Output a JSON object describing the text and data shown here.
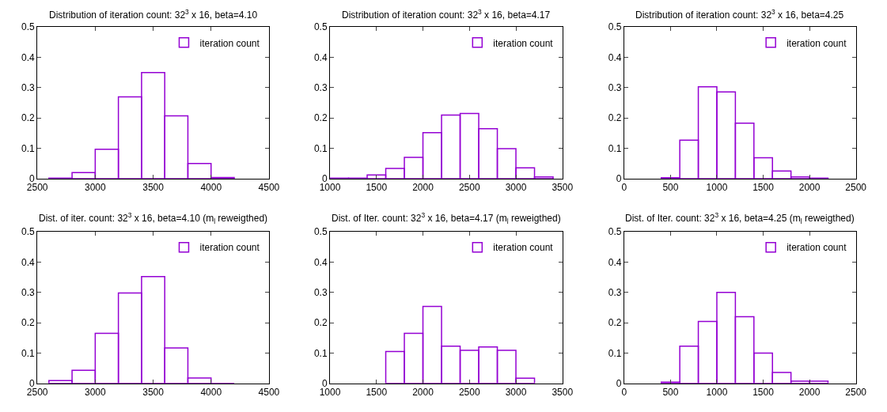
{
  "chart_data": [
    {
      "type": "histogram",
      "title": "Distribution of iteration count: 32$^{3}$ x 16, beta=4.10",
      "bins": [
        2600,
        2800,
        3000,
        3200,
        3400,
        3600,
        3800,
        4000,
        4200
      ],
      "series": [
        {
          "name": "iteration count",
          "color": "#9400d3",
          "values": [
            0.002,
            0.02,
            0.097,
            0.27,
            0.35,
            0.207,
            0.05,
            0.004
          ]
        }
      ],
      "xlim": [
        2500,
        4500
      ],
      "xticks": [
        2500,
        3000,
        3500,
        4000,
        4500
      ],
      "ylim": [
        0,
        0.5
      ],
      "yticks": [
        0,
        0.1,
        0.2,
        0.3,
        0.4,
        0.5
      ],
      "legend": "top right"
    },
    {
      "type": "histogram",
      "title": "Distribution of iteration count: 32$^{3}$ x 16, beta=4.17",
      "bins": [
        1000,
        1200,
        1400,
        1600,
        1800,
        2000,
        2200,
        2400,
        2600,
        2800,
        3000,
        3200,
        3400
      ],
      "series": [
        {
          "name": "iteration count",
          "color": "#9400d3",
          "values": [
            0.002,
            0.002,
            0.012,
            0.034,
            0.07,
            0.152,
            0.21,
            0.215,
            0.165,
            0.099,
            0.036,
            0.006
          ]
        }
      ],
      "xlim": [
        1000,
        3500
      ],
      "xticks": [
        1000,
        1500,
        2000,
        2500,
        3000,
        3500
      ],
      "ylim": [
        0,
        0.5
      ],
      "yticks": [
        0,
        0.1,
        0.2,
        0.3,
        0.4,
        0.5
      ],
      "legend": "top right"
    },
    {
      "type": "histogram",
      "title": "Distribution of iteration count: 32$^{3}$ x 16, beta=4.25",
      "bins": [
        400,
        600,
        800,
        1000,
        1200,
        1400,
        1600,
        1800,
        2000,
        2200
      ],
      "series": [
        {
          "name": "iteration count",
          "color": "#9400d3",
          "values": [
            0.003,
            0.127,
            0.303,
            0.286,
            0.183,
            0.069,
            0.025,
            0.006,
            0.002
          ]
        }
      ],
      "xlim": [
        0,
        2500
      ],
      "xticks": [
        0,
        500,
        1000,
        1500,
        2000,
        2500
      ],
      "ylim": [
        0,
        0.5
      ],
      "yticks": [
        0,
        0.1,
        0.2,
        0.3,
        0.4,
        0.5
      ],
      "legend": "top right"
    },
    {
      "type": "histogram",
      "title": "Dist. of iter. count: 32$^{3}$ x 16, beta=4.10 (m$_{l}$ reweigthed)",
      "bins": [
        2600,
        2800,
        3000,
        3200,
        3400,
        3600,
        3800,
        4000,
        4200
      ],
      "series": [
        {
          "name": "iteration count",
          "color": "#9400d3",
          "values": [
            0.009,
            0.043,
            0.165,
            0.298,
            0.352,
            0.117,
            0.018,
            0
          ]
        }
      ],
      "xlim": [
        2500,
        4500
      ],
      "xticks": [
        2500,
        3000,
        3500,
        4000,
        4500
      ],
      "ylim": [
        0,
        0.5
      ],
      "yticks": [
        0,
        0.1,
        0.2,
        0.3,
        0.4,
        0.5
      ],
      "legend": "top right"
    },
    {
      "type": "histogram",
      "title": "Dist. of Iter. count: 32$^{3}$ x 16, beta=4.17 (m$_{l}$ reweigthed)",
      "bins": [
        1600,
        1800,
        2000,
        2200,
        2400,
        2600,
        2800,
        3000,
        3200
      ],
      "series": [
        {
          "name": "iteration count",
          "color": "#9400d3",
          "values": [
            0.105,
            0.165,
            0.254,
            0.123,
            0.109,
            0.12,
            0.109,
            0.017
          ]
        }
      ],
      "xlim": [
        1000,
        3500
      ],
      "xticks": [
        1000,
        1500,
        2000,
        2500,
        3000,
        3500
      ],
      "ylim": [
        0,
        0.5
      ],
      "yticks": [
        0,
        0.1,
        0.2,
        0.3,
        0.4,
        0.5
      ],
      "legend": "top right"
    },
    {
      "type": "histogram",
      "title": "Dist. of Iter. count: 32$^{3}$ x 16, beta=4.25 (m$_{l}$ reweigthed)",
      "bins": [
        400,
        600,
        800,
        1000,
        1200,
        1400,
        1600,
        1800,
        2000,
        2200
      ],
      "series": [
        {
          "name": "iteration count",
          "color": "#9400d3",
          "values": [
            0.004,
            0.123,
            0.204,
            0.3,
            0.22,
            0.1,
            0.036,
            0.007,
            0.007
          ]
        }
      ],
      "xlim": [
        0,
        2500
      ],
      "xticks": [
        0,
        500,
        1000,
        1500,
        2000,
        2500
      ],
      "ylim": [
        0,
        0.5
      ],
      "yticks": [
        0,
        0.1,
        0.2,
        0.3,
        0.4,
        0.5
      ],
      "legend": "top right"
    }
  ]
}
